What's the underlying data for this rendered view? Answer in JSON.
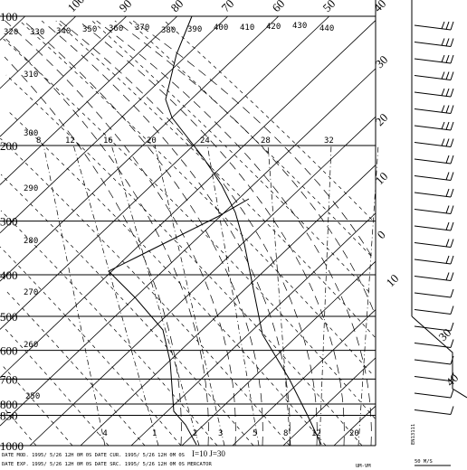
{
  "diagram": {
    "pressure_labels": [
      "100",
      "200",
      "300",
      "400",
      "500",
      "600",
      "700",
      "800",
      "850",
      "1000"
    ],
    "temperature_top_labels": [
      "100",
      "90",
      "80",
      "70",
      "60",
      "50",
      "40"
    ],
    "temperature_right_labels": [
      "30",
      "20",
      "10",
      "0",
      "10",
      "30",
      "40"
    ],
    "theta_top_labels": [
      "320",
      "330",
      "340",
      "350",
      "360",
      "370",
      "380",
      "390",
      "400",
      "410",
      "420",
      "430",
      "440"
    ],
    "theta_left_labels": [
      "310",
      "300",
      "290",
      "280",
      "270",
      "260",
      "250"
    ],
    "mixing_ratio_top_labels": [
      "8",
      "12",
      "16",
      "20",
      "24",
      "28",
      "32"
    ],
    "mixing_ratio_bottom_labels": [
      ".4",
      "1",
      "2",
      "3",
      "5",
      "8",
      "12",
      "20"
    ],
    "footer": {
      "line1": "DATE MOD. 1995/ 5/26  12H 0M 0S   DATE CUR. 1995/ 5/26  12H 0M 0S",
      "line2": "DATE EXP. 1995/ 5/26  12H 0M 0S   DATE SRC. 1995/ 5/26  12H 0M 0S   MERCATOR",
      "grid": "I=10 J=30",
      "projection": "UM-VM",
      "wind_scale": "50 M/S",
      "station": "EN13111"
    }
  }
}
